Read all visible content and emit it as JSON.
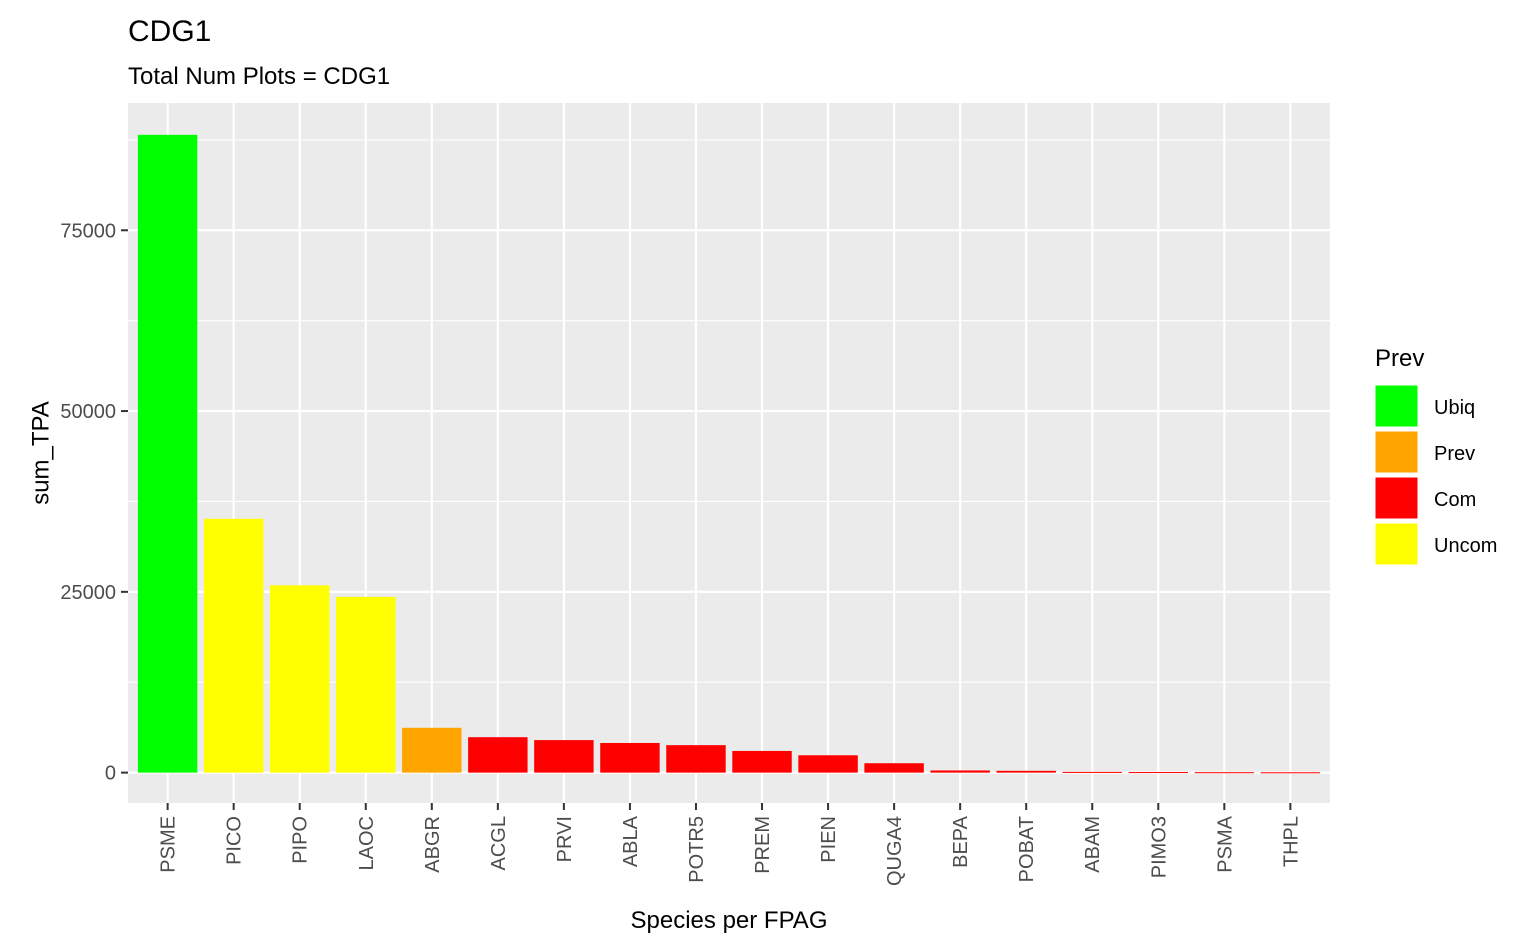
{
  "chart_data": {
    "type": "bar",
    "title": "CDG1",
    "subtitle": "Total Num Plots = CDG1",
    "xlabel": "Species per FPAG",
    "ylabel": "sum_TPA",
    "categories": [
      "PSME",
      "PICO",
      "PIPO",
      "LAOC",
      "ABGR",
      "ACGL",
      "PRVI",
      "ABLA",
      "POTR5",
      "PREM",
      "PIEN",
      "QUGA4",
      "BEPA",
      "POBAT",
      "ABAM",
      "PIMO3",
      "PSMA",
      "THPL"
    ],
    "values": [
      88200,
      35100,
      25900,
      24300,
      6200,
      4900,
      4500,
      4100,
      3800,
      3000,
      2400,
      1300,
      300,
      250,
      100,
      80,
      60,
      50
    ],
    "prev": [
      "Ubiq",
      "Uncom",
      "Uncom",
      "Uncom",
      "Prev",
      "Com",
      "Com",
      "Com",
      "Com",
      "Com",
      "Com",
      "Com",
      "Com",
      "Com",
      "Com",
      "Com",
      "Com",
      "Com"
    ],
    "ylim": [
      -4200,
      92600
    ],
    "yticks": [
      0,
      25000,
      50000,
      75000
    ],
    "ytick_labels": [
      "0",
      "25000",
      "50000",
      "75000"
    ],
    "grid": true,
    "panel_background": "#ebebeb",
    "grid_color": "#ffffff",
    "legend": {
      "title": "Prev",
      "position": "right",
      "entries": [
        {
          "label": "Ubiq",
          "color": "#00ff00"
        },
        {
          "label": "Prev",
          "color": "#ffa500"
        },
        {
          "label": "Com",
          "color": "#ff0000"
        },
        {
          "label": "Uncom",
          "color": "#ffff00"
        }
      ]
    }
  }
}
